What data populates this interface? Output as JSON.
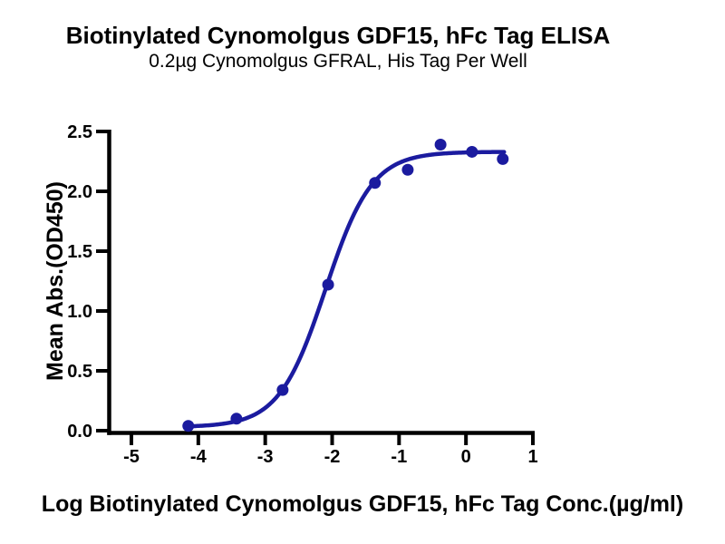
{
  "header": {
    "title": "Biotinylated Cynomolgus GDF15, hFc Tag ELISA",
    "subtitle": "0.2µg Cynomolgus GFRAL, His Tag Per Well"
  },
  "colors": {
    "axis": "#000000",
    "curve": "#1b1b9f",
    "background": "#ffffff"
  },
  "chart_data": {
    "type": "scatter",
    "title": "Biotinylated Cynomolgus GDF15, hFc Tag ELISA",
    "subtitle": "0.2µg Cynomolgus GFRAL, His Tag Per Well",
    "xlabel": "Log Biotinylated Cynomolgus GDF15, hFc Tag Conc.(µg/ml)",
    "ylabel": "Mean Abs.(OD450)",
    "xlim": [
      -5,
      1
    ],
    "ylim": [
      0,
      2.5
    ],
    "grid": false,
    "legend": "none",
    "axis_color": "#000000",
    "x_ticks": [
      {
        "value": -5,
        "label": "-5"
      },
      {
        "value": -4,
        "label": "-4"
      },
      {
        "value": -3,
        "label": "-3"
      },
      {
        "value": -2,
        "label": "-2"
      },
      {
        "value": -1,
        "label": "-1"
      },
      {
        "value": 0,
        "label": "0"
      },
      {
        "value": 1,
        "label": "1"
      }
    ],
    "y_ticks": [
      {
        "value": 0.0,
        "label": "0.0"
      },
      {
        "value": 0.5,
        "label": "0.5"
      },
      {
        "value": 1.0,
        "label": "1.0"
      },
      {
        "value": 1.5,
        "label": "1.5"
      },
      {
        "value": 2.0,
        "label": "2.0"
      },
      {
        "value": 2.5,
        "label": "2.5"
      }
    ],
    "series": [
      {
        "name": "Biotinylated Cynomolgus GDF15, hFc Tag",
        "marker": "circle",
        "marker_radius": 6.5,
        "color": "#1b1b9f",
        "points": [
          {
            "x": -4.15,
            "y": 0.04
          },
          {
            "x": -3.43,
            "y": 0.1
          },
          {
            "x": -2.74,
            "y": 0.34
          },
          {
            "x": -2.06,
            "y": 1.22
          },
          {
            "x": -1.36,
            "y": 2.07
          },
          {
            "x": -0.87,
            "y": 2.18
          },
          {
            "x": -0.38,
            "y": 2.39
          },
          {
            "x": 0.09,
            "y": 2.33
          },
          {
            "x": 0.55,
            "y": 2.27
          }
        ]
      }
    ],
    "fit_curve": {
      "model": "4PL",
      "bottom": 0.03,
      "top": 2.33,
      "logEC50": -2.1,
      "hillslope": 1.25,
      "x_start": -4.15,
      "x_end": 0.58,
      "color": "#1b1b9f"
    }
  }
}
